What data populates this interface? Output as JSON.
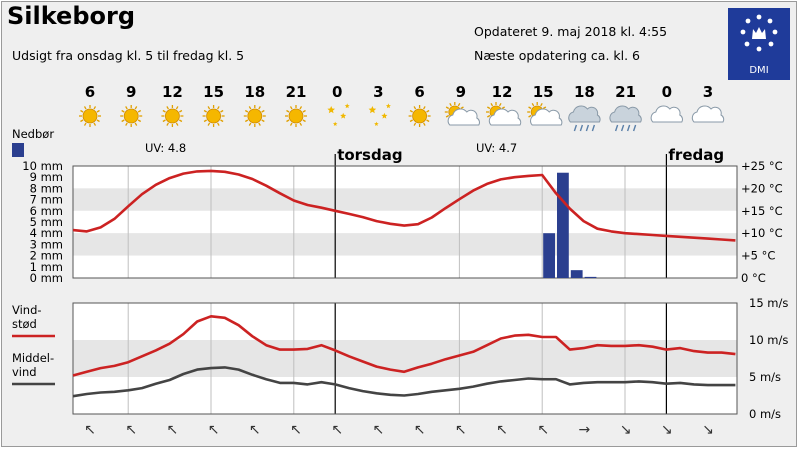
{
  "header": {
    "title": "Silkeborg",
    "subtitle": "Udsigt fra onsdag kl. 5 til fredag kl. 5",
    "updated": "Opdateret 9. maj 2018 kl. 4:55",
    "next_update": "Næste opdatering ca. kl. 6",
    "logo_text": "DMI"
  },
  "colors": {
    "temperature": "#cc2222",
    "gust": "#cc2222",
    "mean_wind": "#444444",
    "precip": "#2b3f8f",
    "sun": "#f5b700",
    "logo": "#1f3b9a"
  },
  "chart_data": [
    {
      "type": "line",
      "title": "",
      "hour_labels": [
        "6",
        "9",
        "12",
        "15",
        "18",
        "21",
        "0",
        "3",
        "6",
        "9",
        "12",
        "15",
        "18",
        "21",
        "0",
        "3"
      ],
      "weather_icons": [
        "sun",
        "sun",
        "sun",
        "sun",
        "sun",
        "sun",
        "clear-night",
        "clear-night",
        "sun",
        "partly-cloudy",
        "partly-cloudy",
        "partly-cloudy",
        "rain-cloud",
        "rain-cloud",
        "cloud",
        "cloud"
      ],
      "day_labels": [
        "torsdag",
        "fredag"
      ],
      "uv_labels": [
        "UV: 4.8",
        "UV: 4.7"
      ],
      "precip_legend": "Nedbør",
      "y_left_ticks": [
        "10 mm",
        "9 mm",
        "8 mm",
        "7 mm",
        "6 mm",
        "5 mm",
        "4 mm",
        "3 mm",
        "2 mm",
        "1 mm",
        "0 mm"
      ],
      "y_right_ticks": [
        "+25 °C",
        "+20 °C",
        "+15 °C",
        "+10 °C",
        "+5 °C",
        "0 °C"
      ],
      "ylim_mm": [
        0,
        10
      ],
      "ylim_temp": [
        0,
        25
      ],
      "temperature_c": {
        "x_hours": [
          5,
          6,
          7,
          8,
          9,
          10,
          11,
          12,
          13,
          14,
          15,
          16,
          17,
          18,
          19,
          20,
          21,
          22,
          23,
          24,
          25,
          26,
          27,
          28,
          29,
          30,
          31,
          32,
          33,
          34,
          35,
          36,
          37,
          38,
          39,
          40,
          41,
          42,
          43,
          44,
          45,
          46,
          47,
          48,
          49,
          50,
          51,
          52,
          53
        ],
        "values": [
          10.7,
          10.4,
          11.3,
          13.2,
          16,
          18.7,
          20.8,
          22.3,
          23.3,
          23.8,
          23.9,
          23.7,
          23.1,
          22.1,
          20.6,
          18.9,
          17.3,
          16.3,
          15.7,
          15,
          14.3,
          13.6,
          12.7,
          12.1,
          11.7,
          12,
          13.5,
          15.6,
          17.6,
          19.5,
          21,
          22,
          22.5,
          22.8,
          23,
          18.9,
          15.5,
          12.7,
          11,
          10.4,
          10,
          9.8,
          9.6,
          9.4,
          9.2,
          9,
          8.8,
          8.6,
          8.4
        ]
      },
      "precipitation_mm": {
        "x_hours": [
          39,
          40,
          41,
          42
        ],
        "values": [
          4,
          9.4,
          0.7,
          0.1
        ]
      }
    },
    {
      "type": "line",
      "title": "",
      "y_right_ticks": [
        "15 m/s",
        "10 m/s",
        "5 m/s",
        "0 m/s"
      ],
      "ylim": [
        0,
        15
      ],
      "series": [
        {
          "name": "Vind-stød",
          "x_hours": [
            5,
            6,
            7,
            8,
            9,
            10,
            11,
            12,
            13,
            14,
            15,
            16,
            17,
            18,
            19,
            20,
            21,
            22,
            23,
            24,
            25,
            26,
            27,
            28,
            29,
            30,
            31,
            32,
            33,
            34,
            35,
            36,
            37,
            38,
            39,
            40,
            41,
            42,
            43,
            44,
            45,
            46,
            47,
            48,
            49,
            50,
            51,
            52,
            53
          ],
          "values": [
            5.2,
            5.7,
            6.2,
            6.5,
            7,
            7.8,
            8.6,
            9.5,
            10.8,
            12.5,
            13.2,
            13,
            12,
            10.5,
            9.3,
            8.7,
            8.7,
            8.8,
            9.3,
            8.6,
            7.8,
            7.1,
            6.4,
            6,
            5.7,
            6.3,
            6.8,
            7.4,
            7.9,
            8.4,
            9.3,
            10.2,
            10.6,
            10.7,
            10.4,
            10.4,
            8.7,
            8.9,
            9.3,
            9.2,
            9.2,
            9.3,
            9.1,
            8.7,
            8.9,
            8.5,
            8.3,
            8.3,
            8.1
          ]
        },
        {
          "name": "Middel-vind",
          "x_hours": [
            5,
            6,
            7,
            8,
            9,
            10,
            11,
            12,
            13,
            14,
            15,
            16,
            17,
            18,
            19,
            20,
            21,
            22,
            23,
            24,
            25,
            26,
            27,
            28,
            29,
            30,
            31,
            32,
            33,
            34,
            35,
            36,
            37,
            38,
            39,
            40,
            41,
            42,
            43,
            44,
            45,
            46,
            47,
            48,
            49,
            50,
            51,
            52,
            53
          ],
          "values": [
            2.4,
            2.7,
            2.9,
            3,
            3.2,
            3.5,
            4.1,
            4.6,
            5.4,
            6,
            6.2,
            6.3,
            6,
            5.3,
            4.7,
            4.2,
            4.2,
            4,
            4.3,
            4,
            3.5,
            3.1,
            2.8,
            2.6,
            2.5,
            2.7,
            3,
            3.2,
            3.4,
            3.7,
            4.1,
            4.4,
            4.6,
            4.8,
            4.7,
            4.7,
            4,
            4.2,
            4.3,
            4.3,
            4.3,
            4.4,
            4.3,
            4.1,
            4.2,
            4,
            3.9,
            3.9,
            3.9
          ]
        }
      ],
      "wind_direction_arrows": [
        "↖",
        "↖",
        "↖",
        "↖",
        "↖",
        "↖",
        "↖",
        "↖",
        "↖",
        "↖",
        "↖",
        "↖",
        "→",
        "↘",
        "↘",
        "↘"
      ]
    }
  ]
}
